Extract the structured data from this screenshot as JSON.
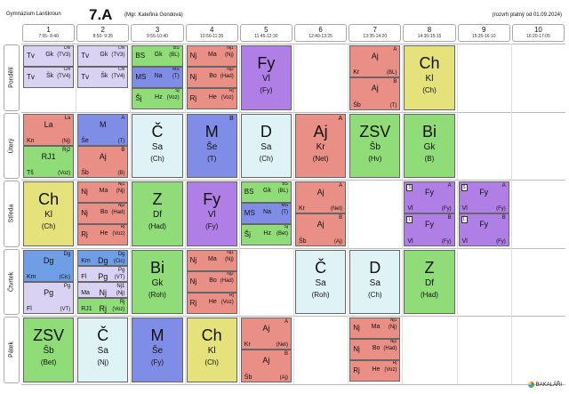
{
  "header": {
    "school": "Gymnázium Lanškroun",
    "class": "7.A",
    "teacher": "(Mgr. Kateřina Gondová)",
    "valid": "(rozvrh platný od 01.09.2024)"
  },
  "periods": [
    {
      "n": "1",
      "t": "7:55- 8:40"
    },
    {
      "n": "2",
      "t": "8:50- 9:35"
    },
    {
      "n": "3",
      "t": "9:55-10:40"
    },
    {
      "n": "4",
      "t": "10:50-11:35"
    },
    {
      "n": "5",
      "t": "11:45-12:30"
    },
    {
      "n": "6",
      "t": "12:40-13:25"
    },
    {
      "n": "7",
      "t": "13:35-14:20"
    },
    {
      "n": "8",
      "t": "14:30-15:15"
    },
    {
      "n": "9",
      "t": "15:25-16:10"
    },
    {
      "n": "10",
      "t": "16:20-17:05"
    }
  ],
  "days": [
    "Pondělí",
    "Úterý",
    "Středa",
    "Čtvrtek",
    "Pátek"
  ],
  "colors": {
    "lav": "#d9d2f2",
    "green": "#8fdc78",
    "salmon": "#e98f85",
    "purple": "#b07fe6",
    "yellow": "#e5e27c",
    "cyan": "#dff3f7",
    "blue": "#7f8de6",
    "steel": "#6f9de6"
  },
  "lessons": [
    {
      "d": 0,
      "p": 0,
      "n": 3,
      "i": 0,
      "c": "lav",
      "s": "Tv",
      "t": "Gk",
      "r": "Div",
      "g": "(TV3)"
    },
    {
      "d": 0,
      "p": 0,
      "n": 3,
      "i": 1,
      "c": "lav",
      "s": "Tv",
      "t": "Šk",
      "r": "Chl",
      "g": "(TV4)"
    },
    {
      "d": 0,
      "p": 1,
      "n": 3,
      "i": 0,
      "c": "lav",
      "s": "Tv",
      "t": "Gk",
      "r": "Div",
      "g": "(TV3)"
    },
    {
      "d": 0,
      "p": 1,
      "n": 3,
      "i": 1,
      "c": "lav",
      "s": "Tv",
      "t": "Šk",
      "r": "Chl",
      "g": "(TV4)"
    },
    {
      "d": 0,
      "p": 2,
      "n": 3,
      "i": 0,
      "c": "green",
      "s": "BS",
      "t": "Gk",
      "r": "BS",
      "g": "(BL)"
    },
    {
      "d": 0,
      "p": 2,
      "n": 3,
      "i": 1,
      "c": "blue",
      "s": "MS",
      "t": "Na",
      "r": "MS",
      "g": "(T)"
    },
    {
      "d": 0,
      "p": 2,
      "n": 3,
      "i": 2,
      "c": "green",
      "s": "Šj",
      "t": "Hz",
      "r": "Šj",
      "g": "(Voz)"
    },
    {
      "d": 0,
      "p": 3,
      "n": 3,
      "i": 0,
      "c": "salmon",
      "s": "Nj",
      "t": "Ma",
      "r": "Nj1",
      "g": "(Nj)"
    },
    {
      "d": 0,
      "p": 3,
      "n": 3,
      "i": 1,
      "c": "salmon",
      "s": "Nj",
      "t": "Bo",
      "r": "Nj2",
      "g": "(Had)"
    },
    {
      "d": 0,
      "p": 3,
      "n": 3,
      "i": 2,
      "c": "salmon",
      "s": "Rj",
      "t": "He",
      "r": "Rj",
      "g": "(Voz)"
    },
    {
      "d": 0,
      "p": 4,
      "n": 1,
      "i": 0,
      "c": "purple",
      "s": "Fy",
      "t": "Vl",
      "r": "",
      "g": "(Fy)"
    },
    {
      "d": 0,
      "p": 6,
      "n": 2,
      "i": 0,
      "c": "salmon",
      "s": "Aj",
      "t": "Kr",
      "r": "A",
      "g": "(BL)"
    },
    {
      "d": 0,
      "p": 6,
      "n": 2,
      "i": 1,
      "c": "salmon",
      "s": "Aj",
      "t": "Šb",
      "r": "B",
      "g": "(T)"
    },
    {
      "d": 0,
      "p": 7,
      "n": 1,
      "i": 0,
      "c": "yellow",
      "s": "Ch",
      "t": "Kl",
      "r": "",
      "g": "(Ch)"
    },
    {
      "d": 1,
      "p": 0,
      "n": 2,
      "i": 0,
      "c": "salmon",
      "s": "La",
      "t": "Kn",
      "r": "La",
      "g": "(Nj)"
    },
    {
      "d": 1,
      "p": 0,
      "n": 2,
      "i": 1,
      "c": "green",
      "s": "RJ1",
      "t": "Tš",
      "r": "Rj2",
      "g": "(Voz)"
    },
    {
      "d": 1,
      "p": 1,
      "n": 2,
      "i": 0,
      "c": "blue",
      "s": "M",
      "t": "Še",
      "r": "A",
      "g": "(T)"
    },
    {
      "d": 1,
      "p": 1,
      "n": 2,
      "i": 1,
      "c": "salmon",
      "s": "Aj",
      "t": "Šb",
      "r": "B",
      "g": "(B)"
    },
    {
      "d": 1,
      "p": 2,
      "n": 1,
      "i": 0,
      "c": "cyan",
      "s": "Č",
      "t": "Sa",
      "r": "",
      "g": "(Ch)"
    },
    {
      "d": 1,
      "p": 3,
      "n": 1,
      "i": 0,
      "c": "blue",
      "s": "M",
      "t": "Še",
      "r": "B",
      "g": "(T)"
    },
    {
      "d": 1,
      "p": 4,
      "n": 1,
      "i": 0,
      "c": "cyan",
      "s": "D",
      "t": "Sa",
      "r": "",
      "g": "(Ch)"
    },
    {
      "d": 1,
      "p": 5,
      "n": 1,
      "i": 0,
      "c": "salmon",
      "s": "Aj",
      "t": "Kr",
      "r": "A",
      "g": "(Net)"
    },
    {
      "d": 1,
      "p": 6,
      "n": 1,
      "i": 0,
      "c": "green",
      "s": "ZSV",
      "t": "Šb",
      "r": "",
      "g": "(Hv)"
    },
    {
      "d": 1,
      "p": 7,
      "n": 1,
      "i": 0,
      "c": "green",
      "s": "Bi",
      "t": "Gk",
      "r": "",
      "g": "(B)"
    },
    {
      "d": 2,
      "p": 0,
      "n": 1,
      "i": 0,
      "c": "yellow",
      "s": "Ch",
      "t": "Kl",
      "r": "",
      "g": "(Ch)"
    },
    {
      "d": 2,
      "p": 1,
      "n": 3,
      "i": 0,
      "c": "salmon",
      "s": "Nj",
      "t": "Ma",
      "r": "Nj1",
      "g": "(Nj)"
    },
    {
      "d": 2,
      "p": 1,
      "n": 3,
      "i": 1,
      "c": "salmon",
      "s": "Nj",
      "t": "Bo",
      "r": "Nj2",
      "g": "(Had)"
    },
    {
      "d": 2,
      "p": 1,
      "n": 3,
      "i": 2,
      "c": "salmon",
      "s": "Rj",
      "t": "He",
      "r": "Rj",
      "g": "(Voz)"
    },
    {
      "d": 2,
      "p": 2,
      "n": 1,
      "i": 0,
      "c": "green",
      "s": "Z",
      "t": "Df",
      "r": "",
      "g": "(Had)"
    },
    {
      "d": 2,
      "p": 3,
      "n": 1,
      "i": 0,
      "c": "purple",
      "s": "Fy",
      "t": "Vl",
      "r": "",
      "g": "(Fy)"
    },
    {
      "d": 2,
      "p": 4,
      "n": 3,
      "i": 0,
      "c": "green",
      "s": "BS",
      "t": "Gk",
      "r": "BS",
      "g": "(BL)"
    },
    {
      "d": 2,
      "p": 4,
      "n": 3,
      "i": 1,
      "c": "blue",
      "s": "MS",
      "t": "Na",
      "r": "MS",
      "g": "(T)"
    },
    {
      "d": 2,
      "p": 4,
      "n": 3,
      "i": 2,
      "c": "green",
      "s": "Šj",
      "t": "Hz",
      "r": "Šj",
      "g": "(Bet)"
    },
    {
      "d": 2,
      "p": 5,
      "n": 2,
      "i": 0,
      "c": "salmon",
      "s": "Aj",
      "t": "Kr",
      "r": "A",
      "g": "(Net)"
    },
    {
      "d": 2,
      "p": 5,
      "n": 2,
      "i": 1,
      "c": "salmon",
      "s": "Aj",
      "t": "Šb",
      "r": "B",
      "g": "(Aj)"
    },
    {
      "d": 2,
      "p": 7,
      "n": 2,
      "i": 0,
      "c": "purple",
      "s": "Fy",
      "t": "Vl",
      "r": "A",
      "g": "(Fy)",
      "w": "S"
    },
    {
      "d": 2,
      "p": 7,
      "n": 2,
      "i": 1,
      "c": "purple",
      "s": "Fy",
      "t": "Vl",
      "r": "B",
      "g": "(Fy)",
      "w": "L"
    },
    {
      "d": 2,
      "p": 8,
      "n": 2,
      "i": 0,
      "c": "purple",
      "s": "Fy",
      "t": "Vl",
      "r": "A",
      "g": "(Fy)",
      "w": "S"
    },
    {
      "d": 2,
      "p": 8,
      "n": 2,
      "i": 1,
      "c": "purple",
      "s": "Fy",
      "t": "Vl",
      "r": "B",
      "g": "(Fy)",
      "w": "L"
    },
    {
      "d": 3,
      "p": 0,
      "n": 2,
      "i": 0,
      "c": "steel",
      "s": "Dg",
      "t": "Km",
      "r": "Dg",
      "g": "(Cic)"
    },
    {
      "d": 3,
      "p": 0,
      "n": 2,
      "i": 1,
      "c": "lav",
      "s": "Pg",
      "t": "Fl",
      "r": "Pg",
      "g": "(VT)"
    },
    {
      "d": 3,
      "p": 1,
      "n": 4,
      "i": 0,
      "c": "steel",
      "s": "Dg",
      "t": "Km",
      "r": "Dg",
      "g": "(Cic)"
    },
    {
      "d": 3,
      "p": 1,
      "n": 4,
      "i": 1,
      "c": "lav",
      "s": "Pg",
      "t": "Fl",
      "r": "Pg",
      "g": "(VT)"
    },
    {
      "d": 3,
      "p": 1,
      "n": 4,
      "i": 2,
      "c": "lav",
      "s": "Nj",
      "t": "Ma",
      "r": "Nj1",
      "g": "(Nj)"
    },
    {
      "d": 3,
      "p": 1,
      "n": 4,
      "i": 3,
      "c": "green",
      "s": "Rj",
      "t": "RJ1",
      "r": "Rj",
      "g": "(Voz)"
    },
    {
      "d": 3,
      "p": 2,
      "n": 1,
      "i": 0,
      "c": "green",
      "s": "Bi",
      "t": "Gk",
      "r": "",
      "g": "(Roh)"
    },
    {
      "d": 3,
      "p": 3,
      "n": 3,
      "i": 0,
      "c": "salmon",
      "s": "Nj",
      "t": "Ma",
      "r": "Nj1",
      "g": "(Nj)"
    },
    {
      "d": 3,
      "p": 3,
      "n": 3,
      "i": 1,
      "c": "salmon",
      "s": "Nj",
      "t": "Bo",
      "r": "Nj2",
      "g": "(Had)"
    },
    {
      "d": 3,
      "p": 3,
      "n": 3,
      "i": 2,
      "c": "salmon",
      "s": "Rj",
      "t": "He",
      "r": "Rj",
      "g": "(Voz)"
    },
    {
      "d": 3,
      "p": 5,
      "n": 1,
      "i": 0,
      "c": "cyan",
      "s": "Č",
      "t": "Sa",
      "r": "",
      "g": "(Roh)"
    },
    {
      "d": 3,
      "p": 6,
      "n": 1,
      "i": 0,
      "c": "cyan",
      "s": "D",
      "t": "Sa",
      "r": "",
      "g": "(Ch)"
    },
    {
      "d": 3,
      "p": 7,
      "n": 1,
      "i": 0,
      "c": "green",
      "s": "Z",
      "t": "Df",
      "r": "",
      "g": "(Had)"
    },
    {
      "d": 4,
      "p": 0,
      "n": 1,
      "i": 0,
      "c": "green",
      "s": "ZSV",
      "t": "Šb",
      "r": "",
      "g": "(Bet)"
    },
    {
      "d": 4,
      "p": 1,
      "n": 1,
      "i": 0,
      "c": "cyan",
      "s": "Č",
      "t": "Sa",
      "r": "",
      "g": "(Nj)"
    },
    {
      "d": 4,
      "p": 2,
      "n": 1,
      "i": 0,
      "c": "blue",
      "s": "M",
      "t": "Še",
      "r": "",
      "g": "(Fy)"
    },
    {
      "d": 4,
      "p": 3,
      "n": 1,
      "i": 0,
      "c": "yellow",
      "s": "Ch",
      "t": "Kl",
      "r": "",
      "g": "(Ch)"
    },
    {
      "d": 4,
      "p": 4,
      "n": 2,
      "i": 0,
      "c": "salmon",
      "s": "Aj",
      "t": "Kr",
      "r": "A",
      "g": "(Net)"
    },
    {
      "d": 4,
      "p": 4,
      "n": 2,
      "i": 1,
      "c": "salmon",
      "s": "Aj",
      "t": "Šb",
      "r": "B",
      "g": "(Aj)"
    },
    {
      "d": 4,
      "p": 6,
      "n": 3,
      "i": 0,
      "c": "salmon",
      "s": "Nj",
      "t": "Ma",
      "r": "Nj1",
      "g": "(Nj)"
    },
    {
      "d": 4,
      "p": 6,
      "n": 3,
      "i": 1,
      "c": "salmon",
      "s": "Nj",
      "t": "Bo",
      "r": "Nj2",
      "g": "(Had)"
    },
    {
      "d": 4,
      "p": 6,
      "n": 3,
      "i": 2,
      "c": "salmon",
      "s": "Rj",
      "t": "He",
      "r": "Rj",
      "g": "(Voz)"
    }
  ],
  "logo": "BAKALÁŘI"
}
